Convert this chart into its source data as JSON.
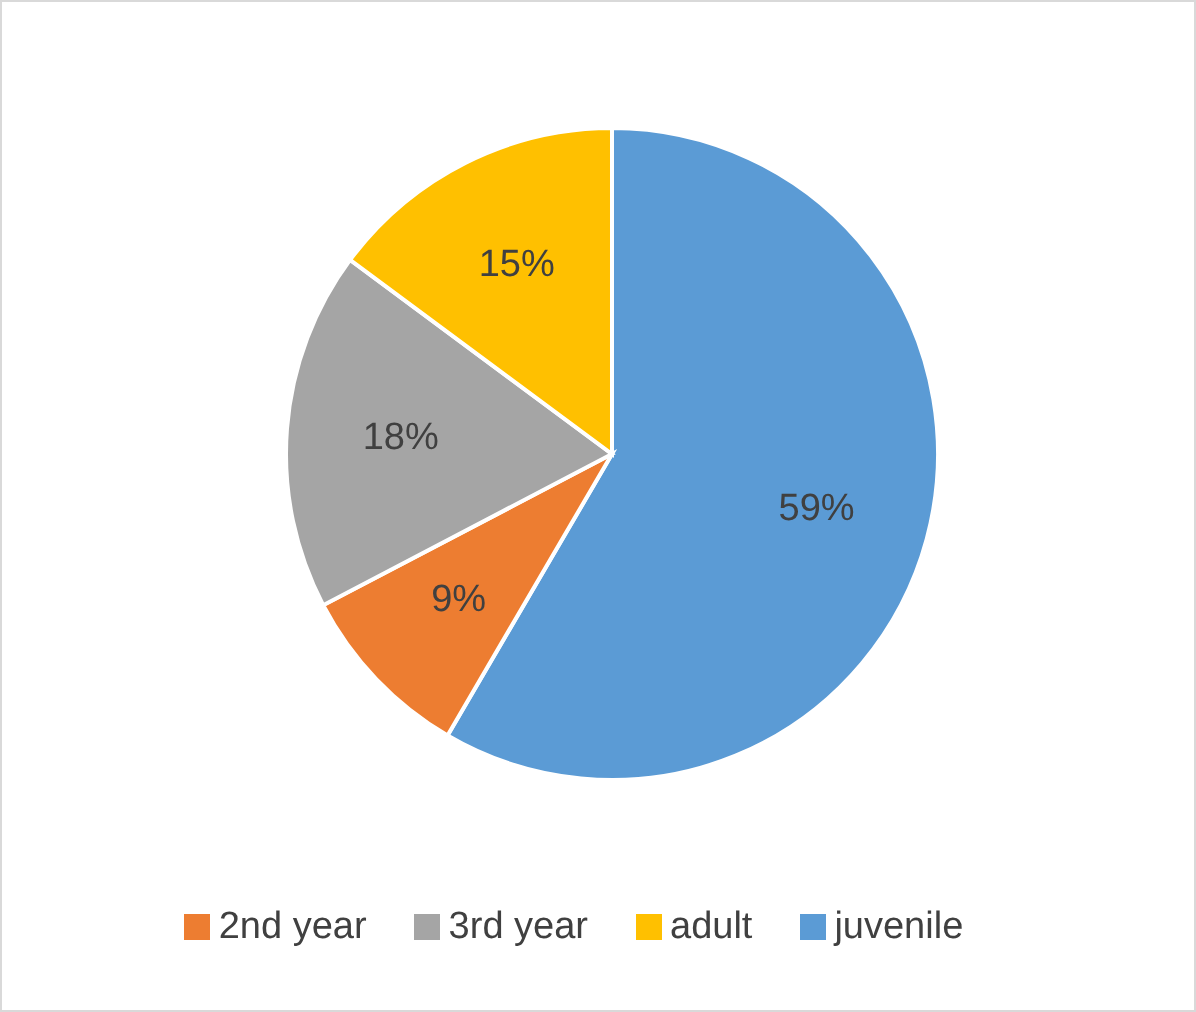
{
  "chart_data": {
    "type": "pie",
    "categories": [
      "juvenile",
      "2nd year",
      "3rd year",
      "adult"
    ],
    "values": [
      59,
      9,
      18,
      15
    ],
    "value_labels": [
      "59%",
      "9%",
      "18%",
      "15%"
    ],
    "colors": [
      "#5b9bd5",
      "#ed7d31",
      "#a5a5a5",
      "#ffc000"
    ],
    "legend": "bottom"
  }
}
